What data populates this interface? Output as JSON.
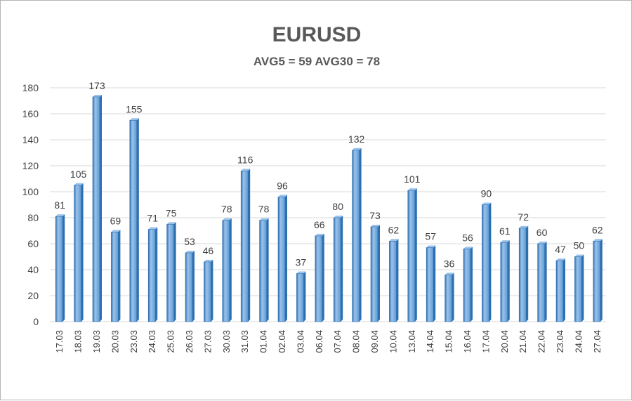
{
  "chart_data": {
    "type": "bar",
    "title": "EURUSD",
    "subtitle": "AVG5 = 59 AVG30 = 78",
    "categories": [
      "17.03",
      "18.03",
      "19.03",
      "20.03",
      "23.03",
      "24.03",
      "25.03",
      "26.03",
      "27.03",
      "30.03",
      "31.03",
      "01.04",
      "02.04",
      "03.04",
      "06.04",
      "07.04",
      "08.04",
      "09.04",
      "10.04",
      "13.04",
      "14.04",
      "15.04",
      "16.04",
      "17.04",
      "20.04",
      "21.04",
      "22.04",
      "23.04",
      "24.04",
      "27.04"
    ],
    "values": [
      81,
      105,
      173,
      69,
      155,
      71,
      75,
      53,
      46,
      78,
      116,
      78,
      96,
      37,
      66,
      80,
      132,
      73,
      62,
      101,
      57,
      36,
      56,
      90,
      61,
      72,
      60,
      47,
      50,
      62
    ],
    "ylim": [
      0,
      180
    ],
    "yticks": [
      0,
      20,
      40,
      60,
      80,
      100,
      120,
      140,
      160,
      180
    ],
    "grid": true,
    "legend": "none",
    "bar_color": "#5b9bd5",
    "bar_dark": "#2e6fb0",
    "bar_light": "#9cc3ea"
  }
}
